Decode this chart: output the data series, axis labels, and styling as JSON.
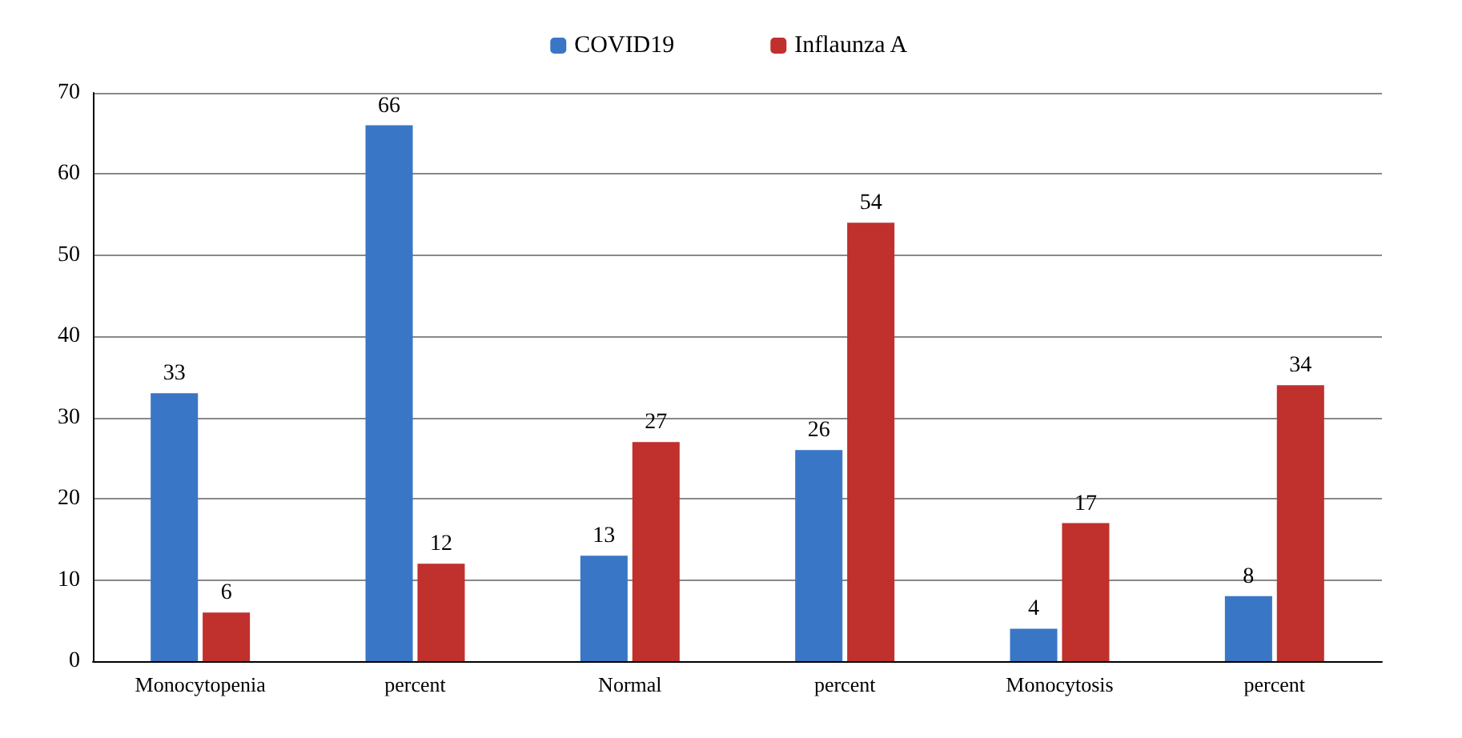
{
  "chart_data": {
    "type": "bar",
    "categories": [
      "Monocytopenia",
      "percent",
      "Normal",
      "percent",
      "Monocytosis",
      "percent"
    ],
    "series": [
      {
        "name": "COVID19",
        "color": "#3a76c6",
        "values": [
          33,
          66,
          13,
          26,
          4,
          8
        ]
      },
      {
        "name": "Inflaunza A",
        "color": "#c0302d",
        "values": [
          6,
          12,
          27,
          54,
          17,
          34
        ]
      }
    ],
    "ylim": [
      0,
      70
    ],
    "yticks": [
      0,
      10,
      20,
      30,
      40,
      50,
      60,
      70
    ],
    "grid": "y",
    "legend": "top",
    "data_labels": true
  }
}
